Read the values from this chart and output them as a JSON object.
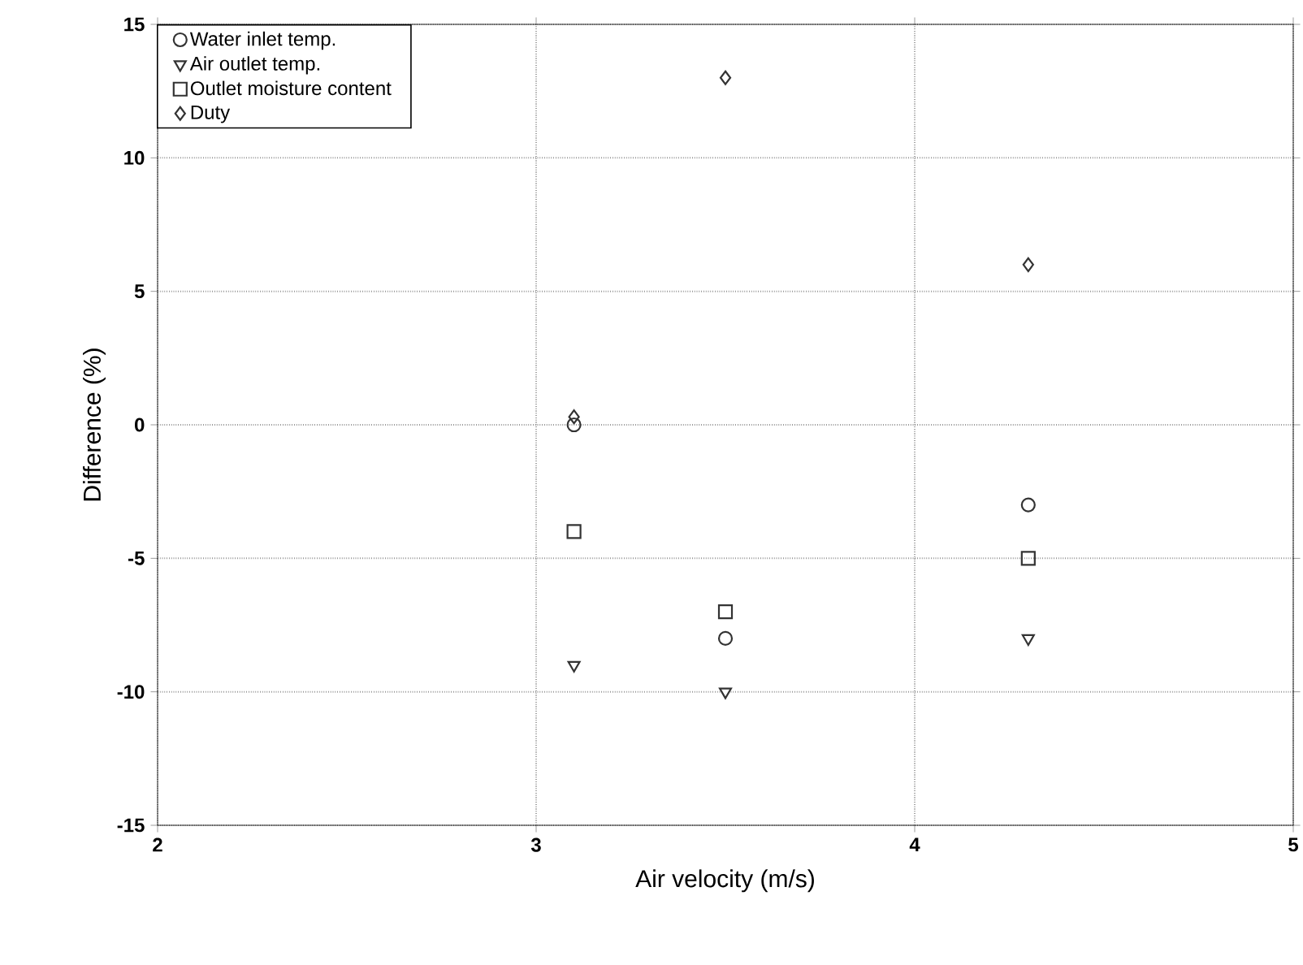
{
  "chart_data": {
    "type": "scatter",
    "xlabel": "Air velocity (m/s)",
    "ylabel": "Difference (%)",
    "xlim": [
      2,
      5
    ],
    "xticks": [
      2,
      3,
      4,
      5
    ],
    "ylim": [
      -15,
      15
    ],
    "yticks": [
      -15,
      -10,
      -5,
      0,
      5,
      10,
      15
    ],
    "grid": true,
    "legend": "top left",
    "series": [
      {
        "name": "Water inlet temp.",
        "color": "#333333",
        "marker": "circle",
        "x": [
          3.1,
          3.5,
          4.3
        ],
        "values": [
          0,
          -8,
          -3
        ]
      },
      {
        "name": "Air outlet temp.",
        "color": "#333333",
        "marker": "triangle",
        "x": [
          3.1,
          3.5,
          4.3
        ],
        "values": [
          -9,
          -10,
          -8
        ]
      },
      {
        "name": "Outlet moisture content",
        "color": "#333333",
        "marker": "square",
        "x": [
          3.1,
          3.5,
          4.3
        ],
        "values": [
          -4,
          -7,
          -5
        ]
      },
      {
        "name": "Duty",
        "color": "#333333",
        "marker": "diamond",
        "x": [
          3.1,
          3.5,
          4.3
        ],
        "values": [
          0.3,
          13,
          6
        ]
      }
    ]
  }
}
